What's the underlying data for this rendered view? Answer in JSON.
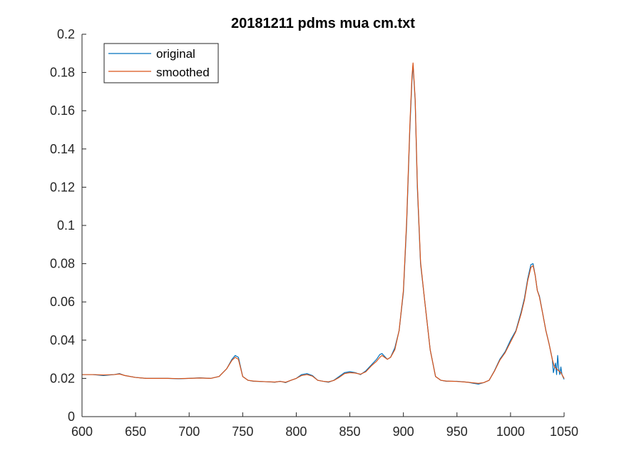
{
  "chart_data": {
    "type": "line",
    "title": "20181211 pdms mua cm.txt",
    "xlabel": "",
    "ylabel": "",
    "xlim": [
      600,
      1050
    ],
    "ylim": [
      0,
      0.2
    ],
    "xticks": [
      600,
      650,
      700,
      750,
      800,
      850,
      900,
      950,
      1000,
      1050
    ],
    "xtick_labels": [
      "600",
      "650",
      "700",
      "750",
      "800",
      "850",
      "900",
      "950",
      "1000",
      "1050"
    ],
    "yticks": [
      0,
      0.02,
      0.04,
      0.06,
      0.08,
      0.1,
      0.12,
      0.14,
      0.16,
      0.18,
      0.2
    ],
    "ytick_labels": [
      "0",
      "0.02",
      "0.04",
      "0.06",
      "0.08",
      "0.1",
      "0.12",
      "0.14",
      "0.16",
      "0.18",
      "0.2"
    ],
    "grid": false,
    "legend": {
      "position": "top-left",
      "entries": [
        "original",
        "smoothed"
      ]
    },
    "series": [
      {
        "name": "original",
        "color": "#0072BD",
        "x": [
          600,
          610,
          620,
          630,
          635,
          640,
          650,
          660,
          670,
          680,
          690,
          700,
          710,
          720,
          728,
          735,
          740,
          743,
          746,
          750,
          755,
          760,
          770,
          780,
          785,
          790,
          795,
          800,
          805,
          810,
          815,
          820,
          825,
          830,
          835,
          840,
          845,
          850,
          855,
          860,
          865,
          870,
          875,
          878,
          880,
          885,
          888,
          892,
          896,
          900,
          903,
          906,
          908,
          909,
          911,
          913,
          916,
          920,
          925,
          930,
          935,
          940,
          950,
          960,
          965,
          970,
          975,
          980,
          985,
          990,
          995,
          1000,
          1005,
          1010,
          1013,
          1016,
          1019,
          1021,
          1023,
          1025,
          1027,
          1030,
          1033,
          1036,
          1039,
          1040,
          1042,
          1043,
          1044,
          1045,
          1046,
          1047,
          1048,
          1050
        ],
        "y": [
          0.022,
          0.022,
          0.0215,
          0.022,
          0.0225,
          0.0215,
          0.0205,
          0.02,
          0.02,
          0.02,
          0.0198,
          0.02,
          0.0203,
          0.02,
          0.021,
          0.025,
          0.03,
          0.032,
          0.031,
          0.021,
          0.019,
          0.0185,
          0.0183,
          0.018,
          0.0185,
          0.0178,
          0.019,
          0.02,
          0.022,
          0.0225,
          0.0215,
          0.019,
          0.0185,
          0.018,
          0.019,
          0.021,
          0.023,
          0.0235,
          0.023,
          0.022,
          0.024,
          0.027,
          0.03,
          0.0325,
          0.033,
          0.03,
          0.031,
          0.036,
          0.045,
          0.065,
          0.1,
          0.15,
          0.176,
          0.184,
          0.165,
          0.12,
          0.08,
          0.06,
          0.035,
          0.021,
          0.019,
          0.0185,
          0.0185,
          0.018,
          0.0175,
          0.017,
          0.0178,
          0.019,
          0.024,
          0.03,
          0.034,
          0.04,
          0.045,
          0.055,
          0.062,
          0.072,
          0.0795,
          0.08,
          0.074,
          0.066,
          0.063,
          0.054,
          0.045,
          0.038,
          0.03,
          0.023,
          0.028,
          0.022,
          0.032,
          0.025,
          0.022,
          0.026,
          0.022,
          0.0195
        ]
      },
      {
        "name": "smoothed",
        "color": "#D95319",
        "x": [
          600,
          610,
          620,
          630,
          635,
          640,
          650,
          660,
          670,
          680,
          690,
          700,
          710,
          720,
          728,
          735,
          740,
          743,
          746,
          750,
          755,
          760,
          770,
          780,
          785,
          790,
          795,
          800,
          805,
          810,
          815,
          820,
          825,
          830,
          835,
          840,
          845,
          850,
          855,
          860,
          865,
          870,
          875,
          878,
          880,
          885,
          888,
          892,
          896,
          900,
          903,
          906,
          908,
          909,
          911,
          913,
          916,
          920,
          925,
          930,
          935,
          940,
          950,
          960,
          965,
          970,
          975,
          980,
          985,
          990,
          995,
          1000,
          1005,
          1010,
          1013,
          1016,
          1019,
          1021,
          1023,
          1025,
          1027,
          1030,
          1033,
          1036,
          1039,
          1041,
          1043,
          1045,
          1047,
          1050
        ],
        "y": [
          0.022,
          0.022,
          0.0218,
          0.022,
          0.0223,
          0.0215,
          0.0205,
          0.02,
          0.02,
          0.02,
          0.0199,
          0.02,
          0.0202,
          0.02,
          0.021,
          0.025,
          0.0295,
          0.031,
          0.03,
          0.021,
          0.019,
          0.0186,
          0.0183,
          0.0181,
          0.0184,
          0.018,
          0.019,
          0.02,
          0.0215,
          0.022,
          0.0212,
          0.019,
          0.0185,
          0.0182,
          0.0189,
          0.0205,
          0.0225,
          0.023,
          0.0228,
          0.0222,
          0.0235,
          0.0265,
          0.029,
          0.031,
          0.032,
          0.03,
          0.031,
          0.035,
          0.045,
          0.066,
          0.102,
          0.152,
          0.178,
          0.185,
          0.166,
          0.122,
          0.081,
          0.06,
          0.035,
          0.021,
          0.019,
          0.0186,
          0.0184,
          0.018,
          0.0177,
          0.0174,
          0.0178,
          0.019,
          0.0238,
          0.0295,
          0.0335,
          0.039,
          0.0445,
          0.054,
          0.061,
          0.071,
          0.078,
          0.079,
          0.074,
          0.066,
          0.0625,
          0.054,
          0.045,
          0.038,
          0.03,
          0.026,
          0.025,
          0.024,
          0.023,
          0.02
        ]
      }
    ]
  }
}
